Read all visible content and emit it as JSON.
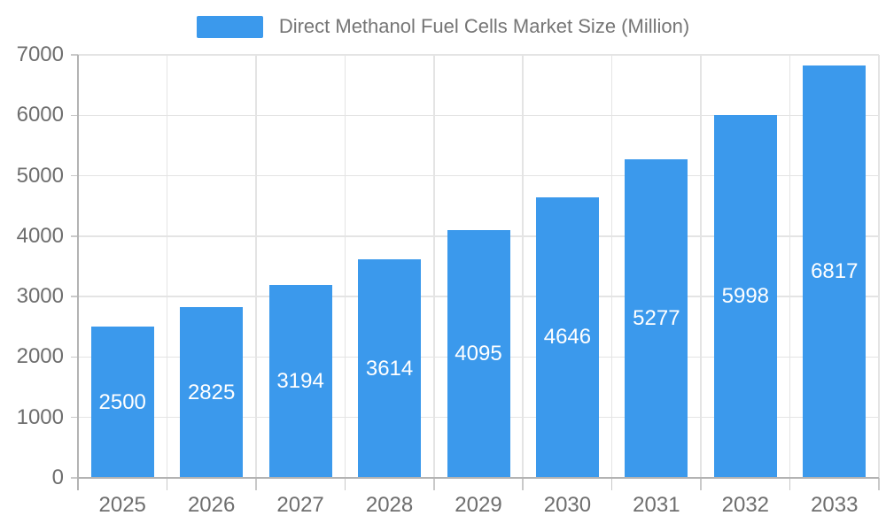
{
  "legend": {
    "label": "Direct Methanol Fuel Cells Market Size (Million)"
  },
  "chart_data": {
    "type": "bar",
    "title": "Direct Methanol Fuel Cells Market Size (Million)",
    "categories": [
      "2025",
      "2026",
      "2027",
      "2028",
      "2029",
      "2030",
      "2031",
      "2032",
      "2033"
    ],
    "series": [
      {
        "name": "Direct Methanol Fuel Cells Market Size (Million)",
        "values": [
          2500,
          2825,
          3194,
          3614,
          4095,
          4646,
          5277,
          5998,
          6817
        ]
      }
    ],
    "values": [
      2500,
      2825,
      3194,
      3614,
      4095,
      4646,
      5277,
      5998,
      6817
    ],
    "xlabel": "",
    "ylabel": "",
    "ylim": [
      0,
      7000
    ],
    "ytick_step": 1000,
    "ytick_labels": [
      "0",
      "1000",
      "2000",
      "3000",
      "4000",
      "5000",
      "6000",
      "7000"
    ],
    "grid": true,
    "value_labels_position": "inside-center",
    "legend_position": "top-center",
    "colors": {
      "bar": "#3B99EC",
      "value_label": "#FFFFFF",
      "axis_label": "#6E6E6E",
      "legend_text": "#757575",
      "axis_line": "#B3B3B3",
      "tick_line": "#C9C9C9",
      "gridline": "#E4E4E4",
      "background": "#FFFFFF"
    }
  }
}
